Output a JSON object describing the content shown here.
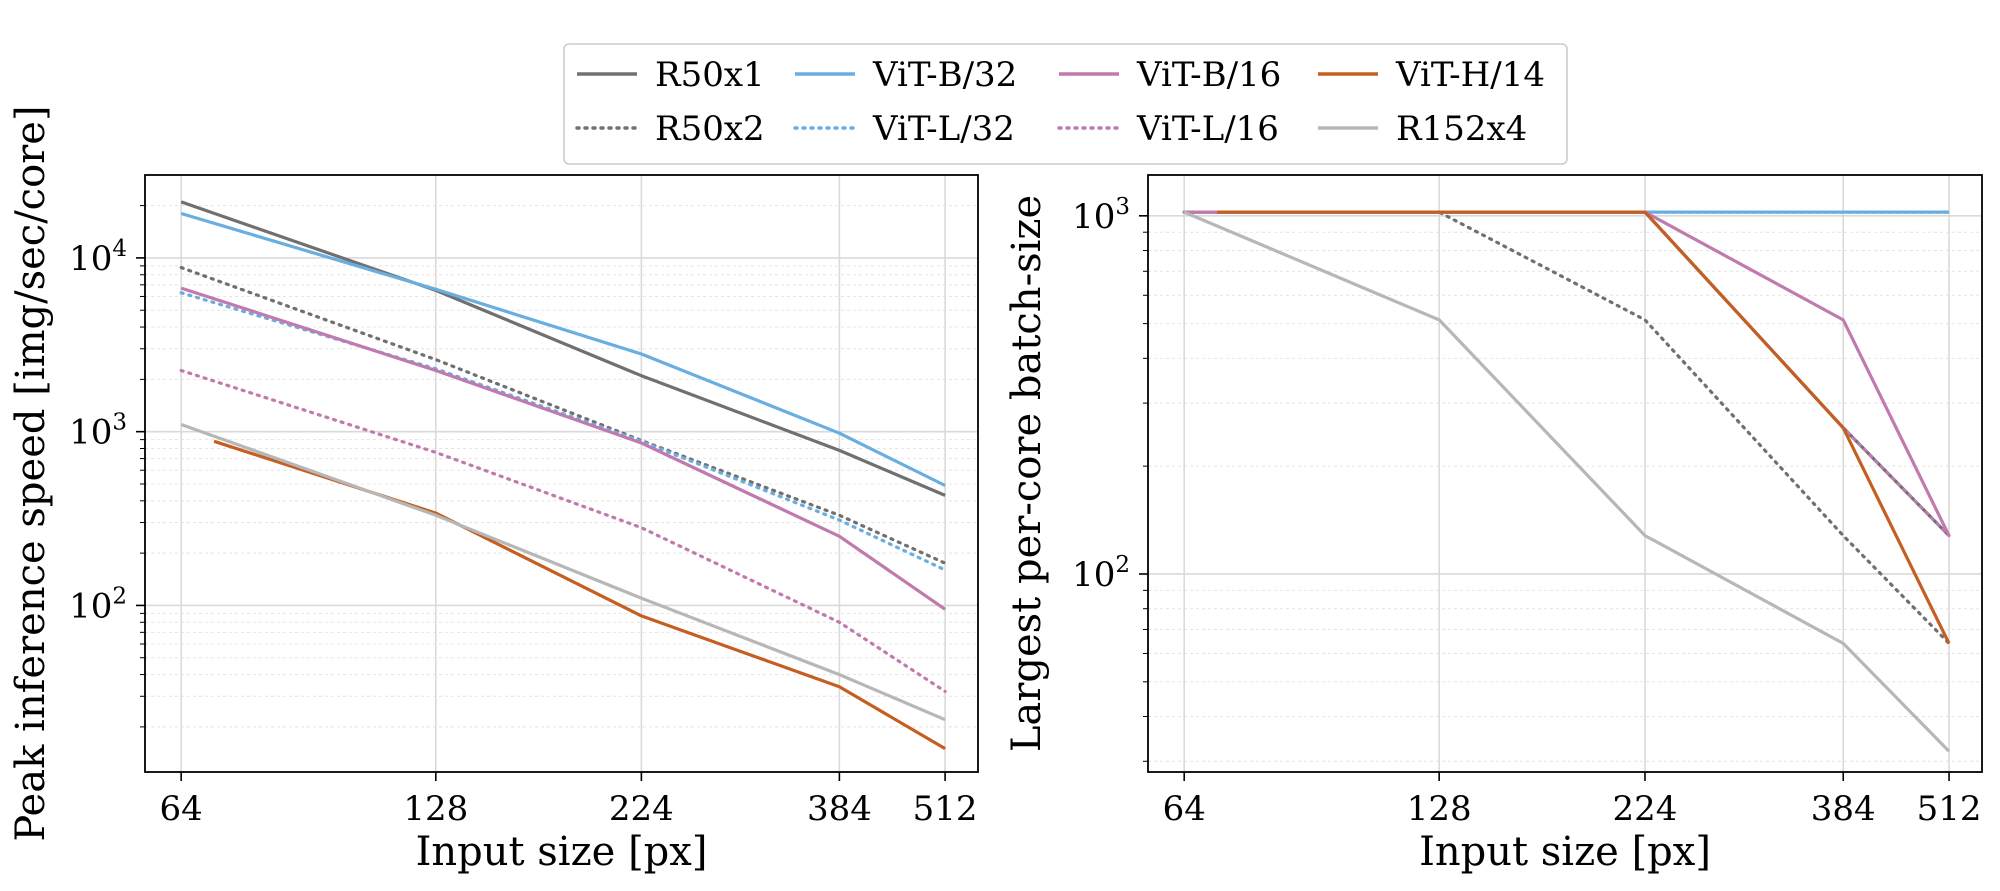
{
  "legend": {
    "placement": "top-center",
    "columns": 4
  },
  "series_styles": [
    {
      "name": "R50x1",
      "color": "#707070",
      "dash": "solid"
    },
    {
      "name": "R50x2",
      "color": "#707070",
      "dash": "dotted"
    },
    {
      "name": "ViT-B/32",
      "color": "#6aaee0",
      "dash": "solid"
    },
    {
      "name": "ViT-L/32",
      "color": "#6aaee0",
      "dash": "dotted"
    },
    {
      "name": "ViT-B/16",
      "color": "#c17aae",
      "dash": "solid"
    },
    {
      "name": "ViT-L/16",
      "color": "#c17aae",
      "dash": "dotted"
    },
    {
      "name": "ViT-H/14",
      "color": "#c45f21",
      "dash": "solid"
    },
    {
      "name": "R152x4",
      "color": "#b7b7b7",
      "dash": "solid"
    }
  ],
  "chart_data": [
    {
      "type": "line",
      "xlabel": "Input size [px]",
      "ylabel": "Peak inference speed [img/sec/core]",
      "x_scale": "log2",
      "y_scale": "log",
      "xlim": [
        58,
        560
      ],
      "ylim": [
        11,
        30000
      ],
      "x_ticks": [
        64,
        128,
        224,
        384,
        512
      ],
      "y_ticks": [
        100,
        1000,
        10000
      ],
      "y_tick_labels": [
        {
          "base": "10",
          "exp": "2"
        },
        {
          "base": "10",
          "exp": "3"
        },
        {
          "base": "10",
          "exp": "4"
        }
      ],
      "grid": true,
      "series": [
        {
          "name": "R50x1",
          "x": [
            64,
            128,
            224,
            384,
            512
          ],
          "values": [
            21000,
            6500,
            2100,
            780,
            430
          ]
        },
        {
          "name": "R50x2",
          "x": [
            64,
            128,
            224,
            384,
            512
          ],
          "values": [
            8800,
            2600,
            890,
            330,
            175
          ]
        },
        {
          "name": "ViT-B/32",
          "x": [
            64,
            128,
            224,
            384,
            512
          ],
          "values": [
            18000,
            6600,
            2800,
            980,
            490
          ]
        },
        {
          "name": "ViT-L/32",
          "x": [
            64,
            128,
            224,
            384,
            512
          ],
          "values": [
            6300,
            2300,
            880,
            310,
            160
          ]
        },
        {
          "name": "ViT-B/16",
          "x": [
            64,
            128,
            224,
            384,
            512
          ],
          "values": [
            6700,
            2250,
            860,
            250,
            95
          ]
        },
        {
          "name": "ViT-L/16",
          "x": [
            64,
            128,
            224,
            384,
            512
          ],
          "values": [
            2250,
            760,
            280,
            80,
            32
          ]
        },
        {
          "name": "ViT-H/14",
          "x": [
            70,
            128,
            224,
            384,
            512
          ],
          "values": [
            880,
            340,
            87,
            34,
            15
          ]
        },
        {
          "name": "R152x4",
          "x": [
            64,
            128,
            224,
            384,
            512
          ],
          "values": [
            1100,
            330,
            110,
            40,
            22
          ]
        }
      ]
    },
    {
      "type": "line",
      "xlabel": "Input size [px]",
      "ylabel": "Largest per-core batch-size",
      "x_scale": "log2",
      "y_scale": "log",
      "xlim": [
        58,
        560
      ],
      "ylim": [
        28,
        1300
      ],
      "x_ticks": [
        64,
        128,
        224,
        384,
        512
      ],
      "y_ticks": [
        100,
        1000
      ],
      "y_tick_labels": [
        {
          "base": "10",
          "exp": "2"
        },
        {
          "base": "10",
          "exp": "3"
        }
      ],
      "grid": true,
      "series": [
        {
          "name": "R50x1",
          "x": [
            64,
            128,
            224,
            384,
            512
          ],
          "values": [
            1024,
            1024,
            1024,
            256,
            128
          ]
        },
        {
          "name": "R50x2",
          "x": [
            64,
            128,
            224,
            384,
            512
          ],
          "values": [
            1024,
            1024,
            512,
            128,
            64
          ]
        },
        {
          "name": "ViT-B/32",
          "x": [
            64,
            128,
            224,
            384,
            512
          ],
          "values": [
            1024,
            1024,
            1024,
            1024,
            1024
          ]
        },
        {
          "name": "ViT-L/32",
          "x": [
            64,
            128,
            224,
            384,
            512
          ],
          "values": [
            1024,
            1024,
            1024,
            1024,
            1024
          ]
        },
        {
          "name": "ViT-B/16",
          "x": [
            64,
            128,
            224,
            384,
            512
          ],
          "values": [
            1024,
            1024,
            1024,
            512,
            128
          ]
        },
        {
          "name": "ViT-L/16",
          "x": [
            64,
            128,
            224,
            384,
            512
          ],
          "values": [
            1024,
            1024,
            1024,
            256,
            128
          ]
        },
        {
          "name": "ViT-H/14",
          "x": [
            70,
            128,
            224,
            384,
            512
          ],
          "values": [
            1024,
            1024,
            1024,
            256,
            64
          ]
        },
        {
          "name": "R152x4",
          "x": [
            64,
            128,
            224,
            384,
            512
          ],
          "values": [
            1024,
            512,
            128,
            64,
            32
          ]
        }
      ]
    }
  ]
}
